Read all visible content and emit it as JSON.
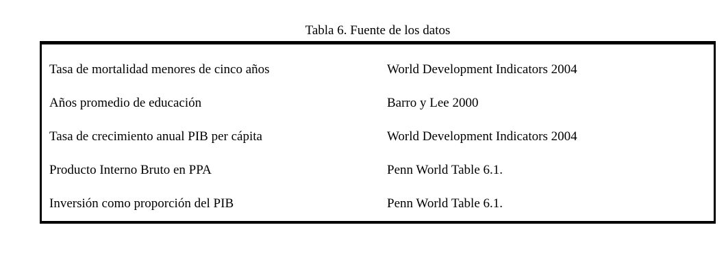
{
  "title": "Tabla 6. Fuente de los datos",
  "table": {
    "rows": [
      {
        "variable": "Tasa de mortalidad menores de cinco años",
        "source": "World Development Indicators 2004"
      },
      {
        "variable": "Años promedio de educación",
        "source": "Barro y Lee 2000"
      },
      {
        "variable": "Tasa de crecimiento anual PIB per cápita",
        "source": "World Development Indicators 2004"
      },
      {
        "variable": "Producto Interno Bruto en PPA",
        "source": "Penn World Table 6.1."
      },
      {
        "variable": "Inversión como proporción del PIB",
        "source": "Penn World Table 6.1."
      }
    ]
  },
  "colors": {
    "text": "#000000",
    "border": "#000000",
    "background": "#ffffff"
  }
}
